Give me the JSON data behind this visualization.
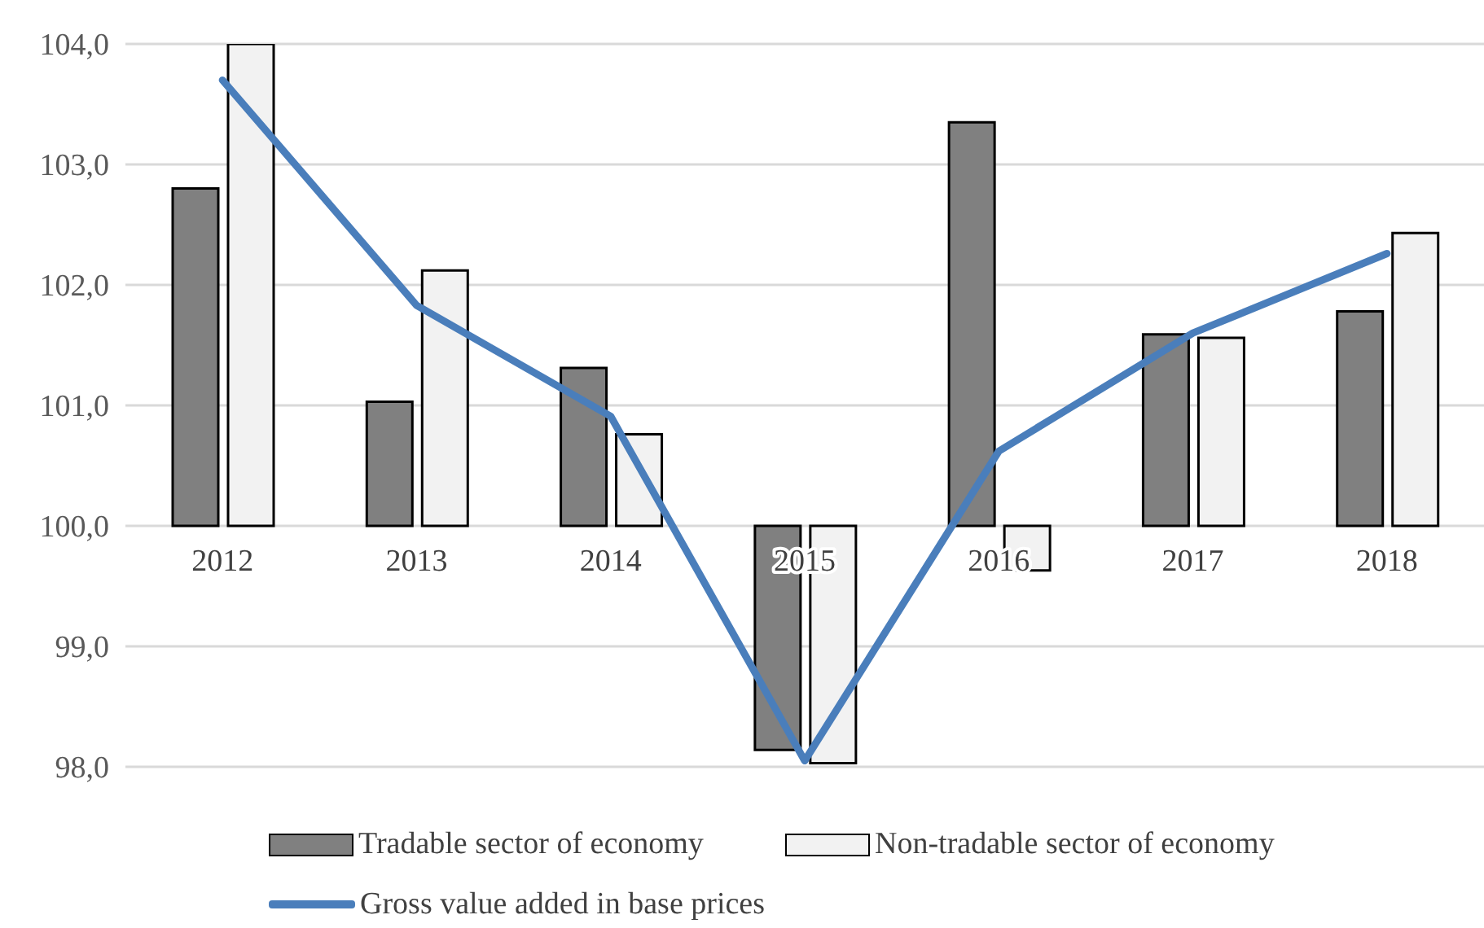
{
  "chart_data": {
    "type": "bar",
    "categories": [
      "2012",
      "2013",
      "2014",
      "2015",
      "2016",
      "2017",
      "2018"
    ],
    "series": [
      {
        "name": "Tradable sector of economy",
        "color": "#808080",
        "base": [
          100,
          100,
          100,
          100,
          100,
          100,
          100
        ],
        "values": [
          2.8,
          1.03,
          1.31,
          -1.86,
          3.35,
          1.59,
          1.78
        ]
      },
      {
        "name": "Non-tradable sector of economy",
        "color": "#f2f2f2",
        "base": [
          100,
          100,
          100,
          100,
          100,
          100,
          100
        ],
        "values": [
          4.0,
          2.12,
          0.76,
          -1.97,
          -0.37,
          1.56,
          2.43
        ]
      },
      {
        "name": "Gross value added in base prices",
        "type": "line",
        "color": "#4a7ebb",
        "values": [
          103.7,
          101.83,
          100.91,
          98.05,
          100.62,
          101.6,
          102.26
        ]
      }
    ],
    "ylim": [
      98,
      104
    ],
    "yticks": [
      {
        "value": 98,
        "label": "98,0"
      },
      {
        "value": 99,
        "label": "99,0"
      },
      {
        "value": 100,
        "label": "100,0"
      },
      {
        "value": 101,
        "label": "101,0"
      },
      {
        "value": 102,
        "label": "102,0"
      },
      {
        "value": 103,
        "label": "103,0"
      },
      {
        "value": 104,
        "label": "104,0"
      }
    ],
    "grid": "y",
    "legend": "bottom",
    "marker": "none",
    "line_style": "solid"
  }
}
